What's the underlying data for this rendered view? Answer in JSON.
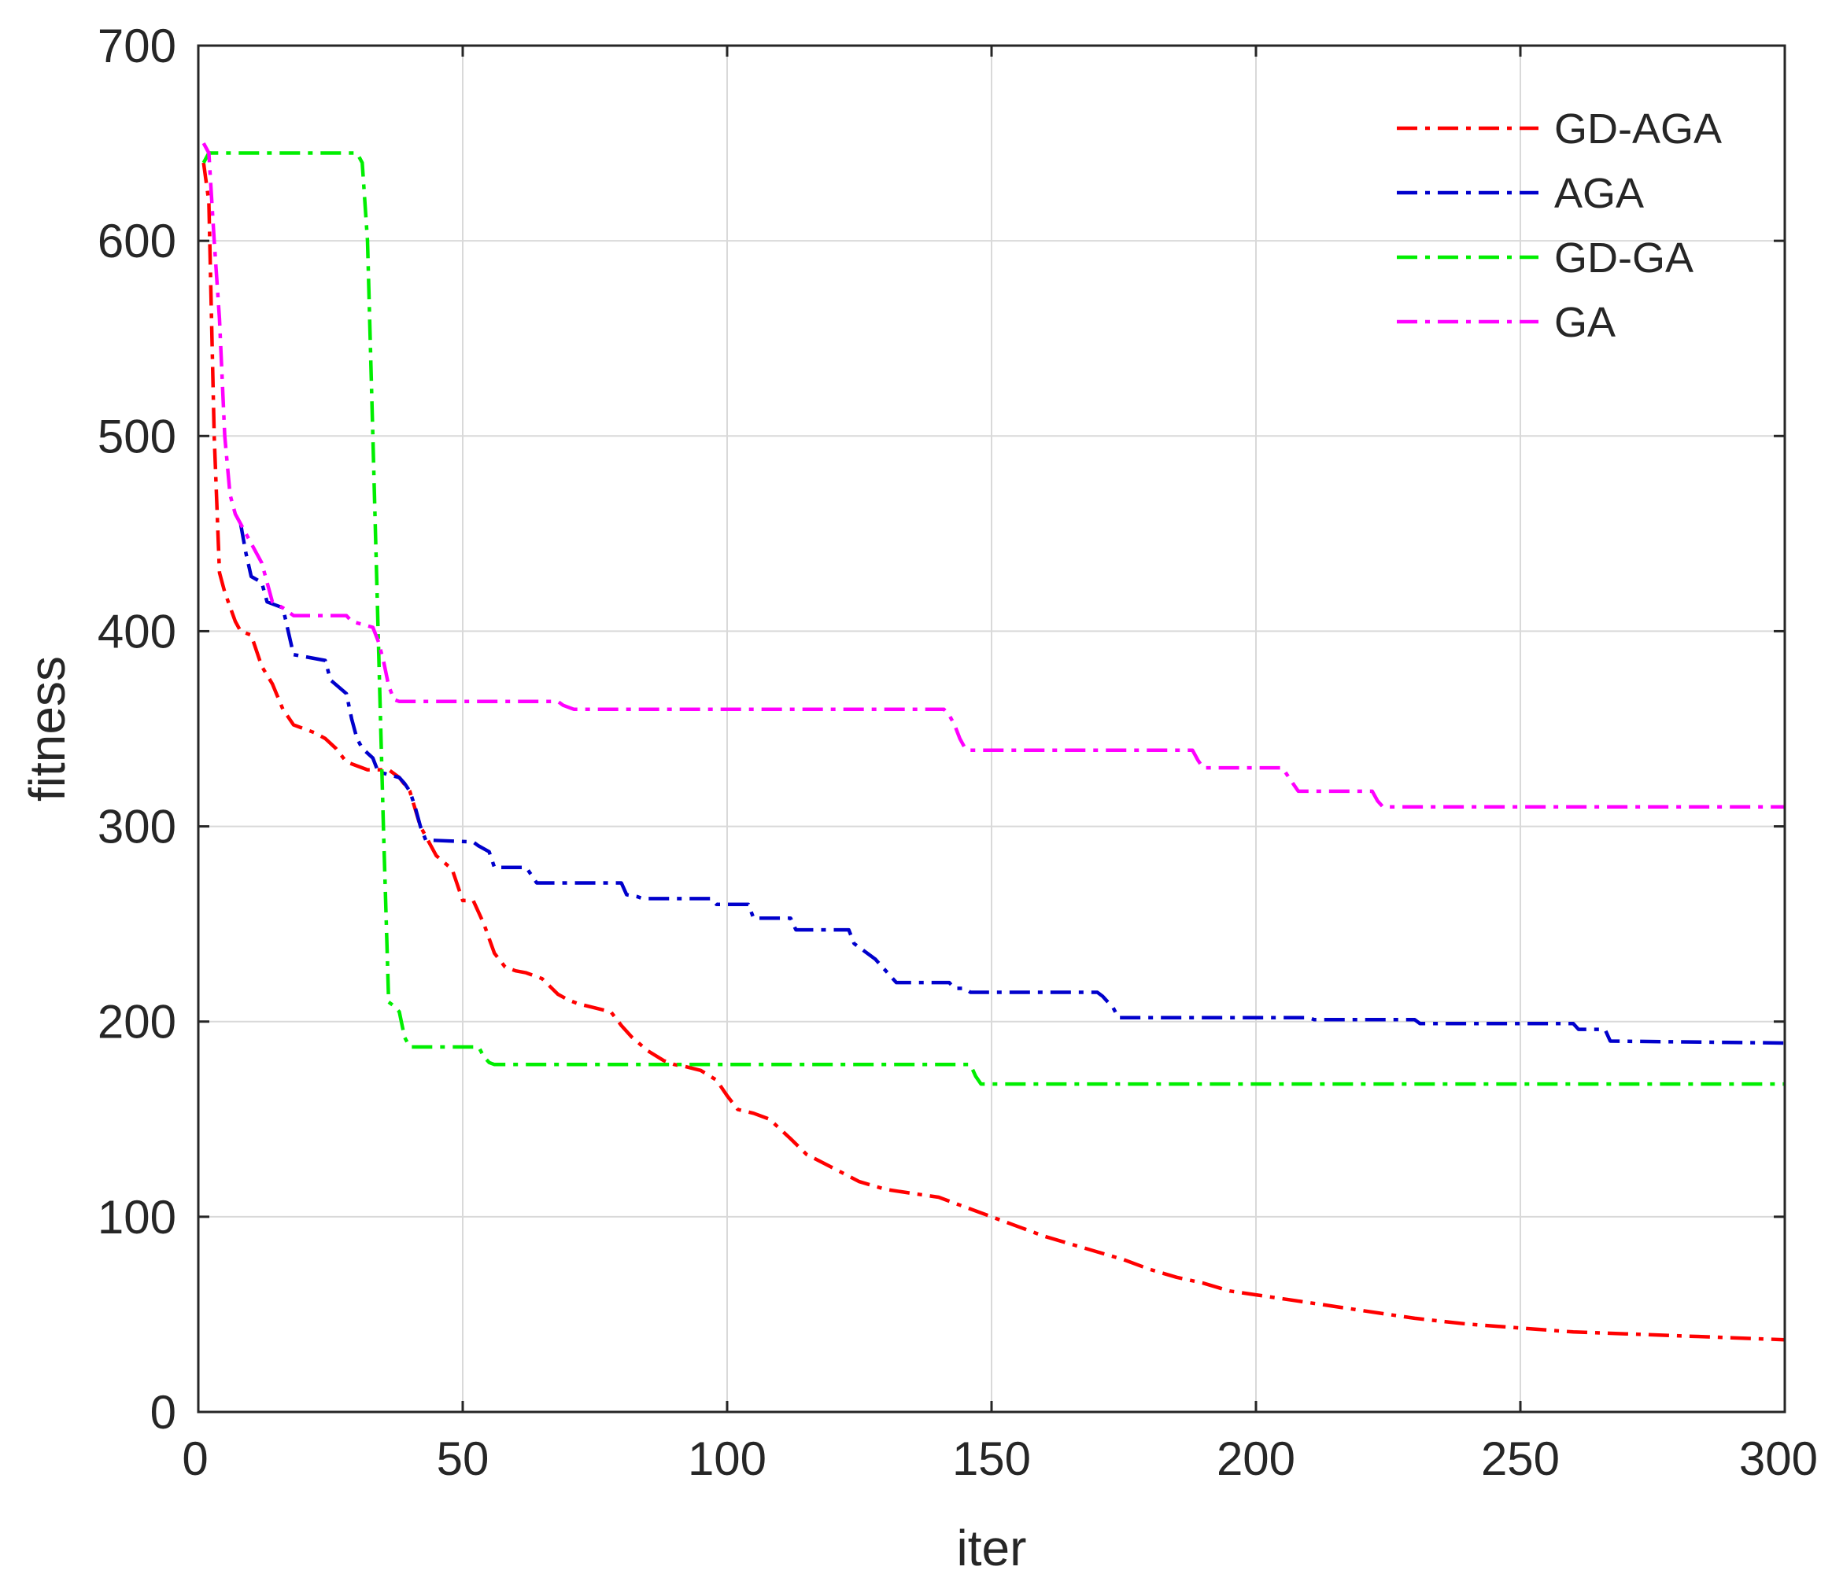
{
  "chart_data": {
    "type": "line",
    "title": "",
    "xlabel": "iter",
    "ylabel": "fitness",
    "xlim": [
      0,
      300
    ],
    "ylim": [
      0,
      700
    ],
    "xticks": [
      0,
      50,
      100,
      150,
      200,
      250,
      300
    ],
    "yticks": [
      0,
      100,
      200,
      300,
      400,
      500,
      600,
      700
    ],
    "grid": true,
    "legend_position": "top-right",
    "series": [
      {
        "name": "GD-AGA",
        "color": "#ff0000",
        "style": "dash-dot",
        "x": [
          1,
          2,
          3,
          4,
          5,
          7,
          8,
          10,
          12,
          14,
          16,
          18,
          20,
          22,
          24,
          26,
          28,
          30,
          32,
          34,
          36,
          38,
          40,
          42,
          45,
          48,
          50,
          52,
          54,
          56,
          58,
          60,
          62,
          65,
          68,
          70,
          72,
          75,
          78,
          80,
          82,
          85,
          88,
          90,
          92,
          95,
          98,
          100,
          102,
          105,
          108,
          112,
          115,
          120,
          125,
          130,
          135,
          140,
          145,
          150,
          155,
          160,
          165,
          170,
          175,
          180,
          185,
          190,
          195,
          200,
          210,
          220,
          230,
          240,
          250,
          260,
          270,
          280,
          290,
          300
        ],
        "y": [
          640,
          620,
          500,
          430,
          420,
          405,
          400,
          398,
          382,
          373,
          360,
          352,
          350,
          348,
          345,
          340,
          333,
          331,
          329,
          329,
          329,
          325,
          318,
          300,
          285,
          278,
          262,
          262,
          250,
          235,
          228,
          226,
          225,
          222,
          214,
          211,
          209,
          207,
          205,
          198,
          192,
          185,
          180,
          178,
          177,
          175,
          170,
          162,
          155,
          153,
          150,
          140,
          132,
          125,
          118,
          114,
          112,
          110,
          105,
          100,
          95,
          90,
          86,
          82,
          78,
          73,
          69,
          66,
          62,
          60,
          56,
          52,
          48,
          45,
          43,
          41,
          40,
          39,
          38,
          37
        ]
      },
      {
        "name": "AGA",
        "color": "#0000cc",
        "style": "dash-dot",
        "x": [
          8,
          9,
          10,
          12,
          13,
          16,
          17,
          18,
          24,
          25,
          28,
          29,
          30,
          31,
          33,
          34,
          38,
          39,
          40,
          41,
          42,
          43,
          52,
          53,
          55,
          56,
          62,
          63,
          64,
          80,
          81,
          83,
          84,
          97,
          98,
          104,
          105,
          112,
          113,
          123,
          124,
          128,
          129,
          131,
          132,
          142,
          143,
          145,
          146,
          170,
          171,
          173,
          174,
          210,
          211,
          230,
          231,
          260,
          261,
          266,
          267,
          300
        ],
        "y": [
          455,
          440,
          428,
          425,
          415,
          412,
          400,
          388,
          385,
          375,
          368,
          355,
          345,
          340,
          335,
          328,
          325,
          322,
          318,
          310,
          300,
          293,
          292,
          290,
          287,
          279,
          279,
          275,
          271,
          271,
          265,
          264,
          263,
          263,
          260,
          260,
          253,
          253,
          247,
          247,
          240,
          232,
          229,
          223,
          220,
          220,
          217,
          217,
          215,
          215,
          213,
          207,
          202,
          202,
          201,
          201,
          199,
          199,
          196,
          196,
          190,
          189
        ]
      },
      {
        "name": "GD-GA",
        "color": "#00ee00",
        "style": "dash-dot",
        "x": [
          1,
          2,
          3,
          30,
          31,
          32,
          33,
          34,
          35,
          36,
          37,
          38,
          39,
          40,
          53,
          54,
          55,
          56,
          146,
          147,
          148,
          300
        ],
        "y": [
          640,
          645,
          645,
          645,
          640,
          600,
          500,
          400,
          300,
          210,
          208,
          205,
          192,
          187,
          187,
          182,
          179,
          178,
          178,
          172,
          168,
          168
        ]
      },
      {
        "name": "GA",
        "color": "#ff00ff",
        "style": "dash-dot",
        "x": [
          1,
          2,
          3,
          4,
          5,
          6,
          7,
          8,
          9,
          10,
          11,
          12,
          13,
          14,
          16,
          17,
          18,
          28,
          29,
          33,
          34,
          35,
          36,
          37,
          38,
          68,
          69,
          70,
          71,
          141,
          142,
          143,
          144,
          145,
          146,
          147,
          188,
          189,
          190,
          191,
          205,
          206,
          207,
          208,
          209,
          222,
          223,
          224,
          300
        ],
        "y": [
          650,
          645,
          600,
          560,
          500,
          470,
          460,
          455,
          450,
          445,
          440,
          435,
          425,
          415,
          412,
          410,
          408,
          408,
          405,
          402,
          395,
          385,
          372,
          365,
          364,
          364,
          362,
          361,
          360,
          360,
          357,
          352,
          345,
          340,
          339,
          339,
          339,
          334,
          330,
          330,
          330,
          326,
          322,
          318,
          318,
          318,
          313,
          310,
          310
        ]
      }
    ]
  }
}
